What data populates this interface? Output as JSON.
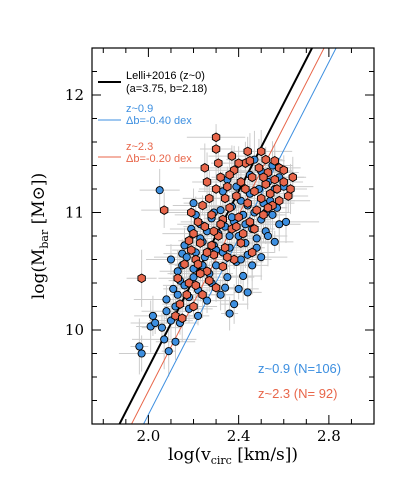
{
  "chart_data": {
    "type": "scatter",
    "title": "",
    "xlabel_main": "log(v",
    "xlabel_sub": "circ",
    "xlabel_tail": " [km/s])",
    "ylabel_main": "log(M",
    "ylabel_sub": "bar",
    "ylabel_tail": " [M",
    "ylabel_symbol": "⊙",
    "ylabel_end": "])",
    "xlim": [
      1.75,
      3.0
    ],
    "ylim": [
      9.2,
      12.4
    ],
    "x_ticks": [
      2.0,
      2.4,
      2.8
    ],
    "x_tick_labels": [
      "2.0",
      "2.4",
      "2.8"
    ],
    "y_ticks": [
      10,
      11,
      12
    ],
    "y_tick_labels": [
      "10",
      "11",
      "12"
    ],
    "legend_placement": "top-left",
    "colors": {
      "z09": "#3d8fe0",
      "z23": "#e8664a",
      "errorbar": "#cccccc",
      "black": "#000000"
    },
    "relations": [
      {
        "name": "Lelli+2016 (z~0)",
        "detail": "(a=3.75, b=2.18)",
        "slope": 3.75,
        "intercept": 2.18,
        "color": "#000000",
        "width": 2
      },
      {
        "name": "z~0.9",
        "detail": "Δb=-0.40 dex",
        "slope": 3.75,
        "intercept": 1.78,
        "color": "#3d8fe0",
        "width": 1
      },
      {
        "name": "z~2.3",
        "detail": "Δb=-0.20 dex",
        "slope": 3.75,
        "intercept": 1.98,
        "color": "#e8664a",
        "width": 1
      }
    ],
    "counts": [
      {
        "label": "z~0.9  (N=106)",
        "color": "#3d8fe0"
      },
      {
        "label": "z~2.3  (N= 92)",
        "color": "#e8664a"
      }
    ],
    "series": [
      {
        "name": "z~0.9",
        "marker": "circle",
        "color": "#3d8fe0",
        "points": [
          [
            2.05,
            11.19
          ],
          [
            2.2,
            11.08
          ],
          [
            2.02,
            10.12
          ],
          [
            1.96,
            9.86
          ],
          [
            1.97,
            9.8
          ],
          [
            2.01,
            10.03
          ],
          [
            2.03,
            10.06
          ],
          [
            2.06,
            10.02
          ],
          [
            2.08,
            10.16
          ],
          [
            2.1,
            10.08
          ],
          [
            2.12,
            10.2
          ],
          [
            2.07,
            9.92
          ],
          [
            2.11,
            10.35
          ],
          [
            2.08,
            10.26
          ],
          [
            2.13,
            10.5
          ],
          [
            2.1,
            10.6
          ],
          [
            2.14,
            10.42
          ],
          [
            2.15,
            10.65
          ],
          [
            2.16,
            10.38
          ],
          [
            2.18,
            10.28
          ],
          [
            2.2,
            10.52
          ],
          [
            2.21,
            10.66
          ],
          [
            2.22,
            10.34
          ],
          [
            2.24,
            10.75
          ],
          [
            2.23,
            10.9
          ],
          [
            2.25,
            10.62
          ],
          [
            2.26,
            10.84
          ],
          [
            2.27,
            10.48
          ],
          [
            2.28,
            10.95
          ],
          [
            2.29,
            10.72
          ],
          [
            2.3,
            10.55
          ],
          [
            2.31,
            10.82
          ],
          [
            2.32,
            11.02
          ],
          [
            2.33,
            10.66
          ],
          [
            2.34,
            10.88
          ],
          [
            2.35,
            10.45
          ],
          [
            2.36,
            10.7
          ],
          [
            2.37,
            11.05
          ],
          [
            2.38,
            10.92
          ],
          [
            2.39,
            10.58
          ],
          [
            2.4,
            10.8
          ],
          [
            2.41,
            11.1
          ],
          [
            2.42,
            10.98
          ],
          [
            2.43,
            10.74
          ],
          [
            2.44,
            10.64
          ],
          [
            2.45,
            11.16
          ],
          [
            2.46,
            10.86
          ],
          [
            2.47,
            11.0
          ],
          [
            2.48,
            10.78
          ],
          [
            2.49,
            11.2
          ],
          [
            2.5,
            10.94
          ],
          [
            2.51,
            11.08
          ],
          [
            2.52,
            10.84
          ],
          [
            2.53,
            11.26
          ],
          [
            2.54,
            11.1
          ],
          [
            2.55,
            10.98
          ],
          [
            2.56,
            11.2
          ],
          [
            2.57,
            11.04
          ],
          [
            2.58,
            10.9
          ],
          [
            2.6,
            11.22
          ],
          [
            2.4,
            10.35
          ],
          [
            2.38,
            10.22
          ],
          [
            2.36,
            10.14
          ],
          [
            2.32,
            10.3
          ],
          [
            2.26,
            10.25
          ],
          [
            2.22,
            10.12
          ],
          [
            2.18,
            10.18
          ],
          [
            2.14,
            10.06
          ],
          [
            2.12,
            9.9
          ],
          [
            2.09,
            9.82
          ],
          [
            2.42,
            10.46
          ],
          [
            2.46,
            10.55
          ],
          [
            2.5,
            10.62
          ],
          [
            2.44,
            10.32
          ],
          [
            2.34,
            10.36
          ],
          [
            2.28,
            10.4
          ],
          [
            2.2,
            10.45
          ],
          [
            2.15,
            10.55
          ],
          [
            2.16,
            10.72
          ],
          [
            2.19,
            10.86
          ],
          [
            2.21,
            10.98
          ],
          [
            2.27,
            11.12
          ],
          [
            2.33,
            11.18
          ],
          [
            2.39,
            11.22
          ],
          [
            2.45,
            11.32
          ],
          [
            2.5,
            11.35
          ],
          [
            2.55,
            11.4
          ],
          [
            2.47,
            11.45
          ],
          [
            2.43,
            10.9
          ],
          [
            2.52,
            11.0
          ],
          [
            2.56,
            10.75
          ],
          [
            2.61,
            10.92
          ],
          [
            2.24,
            10.55
          ],
          [
            2.3,
            10.68
          ],
          [
            2.36,
            10.8
          ],
          [
            2.41,
            10.6
          ],
          [
            2.48,
            10.7
          ],
          [
            2.53,
            10.8
          ],
          [
            2.58,
            11.3
          ],
          [
            2.35,
            11.28
          ],
          [
            2.29,
            11.0
          ],
          [
            2.23,
            10.78
          ],
          [
            2.17,
            10.62
          ],
          [
            2.13,
            10.3
          ],
          [
            2.37,
            10.96
          ],
          [
            2.44,
            11.06
          ]
        ]
      },
      {
        "name": "z~2.3",
        "marker": "hexagon",
        "color": "#e8664a",
        "points": [
          [
            1.97,
            10.44
          ],
          [
            2.07,
            11.02
          ],
          [
            2.3,
            11.64
          ],
          [
            2.3,
            11.54
          ],
          [
            2.5,
            11.52
          ],
          [
            2.52,
            11.45
          ],
          [
            2.12,
            10.12
          ],
          [
            2.14,
            10.22
          ],
          [
            2.16,
            10.56
          ],
          [
            2.18,
            10.4
          ],
          [
            2.19,
            10.68
          ],
          [
            2.2,
            10.82
          ],
          [
            2.21,
            10.6
          ],
          [
            2.22,
            10.92
          ],
          [
            2.23,
            10.74
          ],
          [
            2.24,
            11.06
          ],
          [
            2.25,
            10.88
          ],
          [
            2.26,
            10.5
          ],
          [
            2.27,
            11.12
          ],
          [
            2.28,
            10.98
          ],
          [
            2.29,
            10.64
          ],
          [
            2.3,
            11.2
          ],
          [
            2.31,
            10.8
          ],
          [
            2.32,
            11.3
          ],
          [
            2.33,
            10.94
          ],
          [
            2.34,
            10.7
          ],
          [
            2.35,
            11.22
          ],
          [
            2.36,
            11.04
          ],
          [
            2.37,
            10.86
          ],
          [
            2.38,
            11.36
          ],
          [
            2.39,
            11.14
          ],
          [
            2.4,
            10.96
          ],
          [
            2.41,
            11.26
          ],
          [
            2.42,
            10.82
          ],
          [
            2.43,
            11.42
          ],
          [
            2.44,
            11.08
          ],
          [
            2.45,
            10.92
          ],
          [
            2.46,
            11.3
          ],
          [
            2.47,
            11.18
          ],
          [
            2.48,
            11.02
          ],
          [
            2.49,
            11.38
          ],
          [
            2.5,
            11.12
          ],
          [
            2.51,
            10.98
          ],
          [
            2.52,
            11.24
          ],
          [
            2.53,
            11.34
          ],
          [
            2.54,
            11.16
          ],
          [
            2.55,
            11.06
          ],
          [
            2.56,
            11.28
          ],
          [
            2.57,
            11.2
          ],
          [
            2.58,
            11.38
          ],
          [
            2.6,
            11.26
          ],
          [
            2.62,
            11.14
          ],
          [
            2.64,
            11.3
          ],
          [
            2.21,
            10.38
          ],
          [
            2.24,
            10.3
          ],
          [
            2.27,
            10.42
          ],
          [
            2.33,
            10.54
          ],
          [
            2.38,
            10.6
          ],
          [
            2.2,
            10.2
          ],
          [
            2.17,
            10.3
          ],
          [
            2.15,
            10.1
          ],
          [
            2.23,
            10.48
          ],
          [
            2.29,
            10.84
          ],
          [
            2.35,
            10.62
          ],
          [
            2.41,
            10.74
          ],
          [
            2.46,
            10.66
          ],
          [
            2.31,
            11.42
          ],
          [
            2.37,
            11.48
          ],
          [
            2.43,
            11.2
          ],
          [
            2.26,
            11.26
          ],
          [
            2.19,
            11.0
          ],
          [
            2.25,
            11.38
          ],
          [
            2.44,
            11.52
          ],
          [
            2.56,
            11.44
          ],
          [
            2.6,
            11.36
          ],
          [
            2.34,
            11.12
          ],
          [
            2.28,
            10.72
          ],
          [
            2.4,
            11.42
          ],
          [
            2.22,
            10.56
          ],
          [
            2.18,
            10.76
          ],
          [
            2.32,
            10.9
          ],
          [
            2.36,
            11.32
          ],
          [
            2.47,
            10.86
          ],
          [
            2.53,
            11.04
          ],
          [
            2.58,
            11.1
          ],
          [
            2.63,
            11.2
          ],
          [
            2.13,
            10.44
          ],
          [
            2.26,
            10.66
          ],
          [
            2.39,
            10.88
          ],
          [
            2.45,
            11.44
          ],
          [
            2.51,
            11.3
          ],
          [
            2.3,
            10.36
          ]
        ]
      }
    ]
  }
}
